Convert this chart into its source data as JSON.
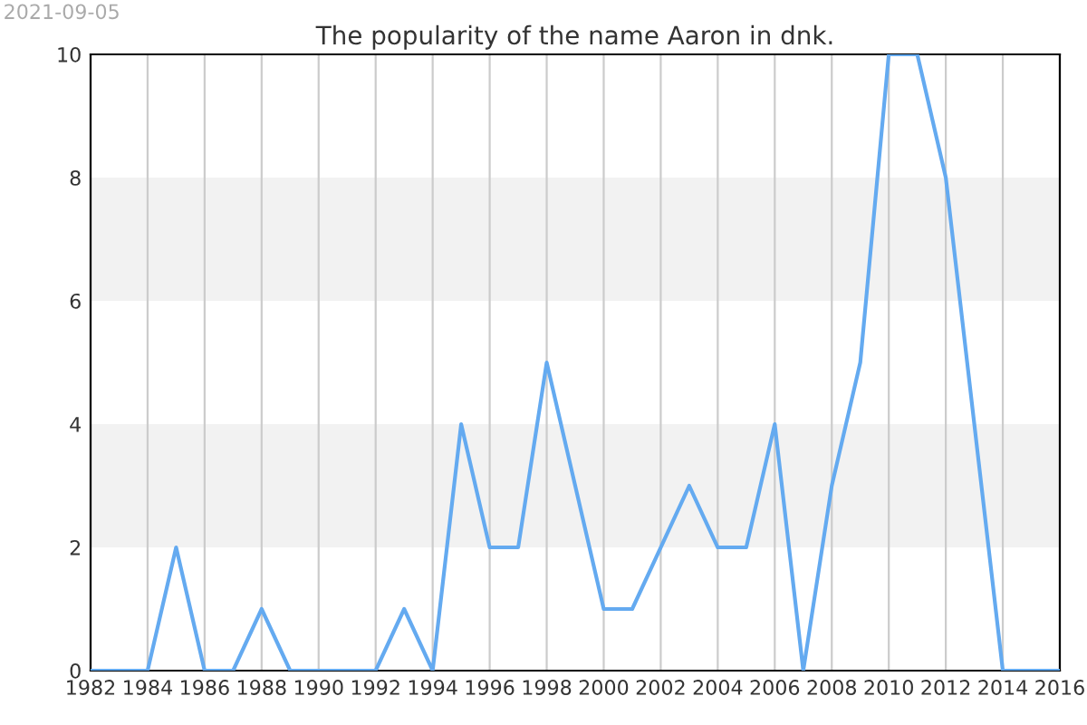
{
  "chart_data": {
    "type": "line",
    "title": "The popularity of the name Aaron in dnk.",
    "x": [
      1982,
      1983,
      1984,
      1985,
      1986,
      1987,
      1988,
      1989,
      1990,
      1991,
      1992,
      1993,
      1994,
      1995,
      1996,
      1997,
      1998,
      1999,
      2000,
      2001,
      2002,
      2003,
      2004,
      2005,
      2006,
      2007,
      2008,
      2009,
      2010,
      2011,
      2012,
      2013,
      2014,
      2015,
      2016
    ],
    "series": [
      {
        "color": "#64aaf0",
        "values": [
          0,
          0,
          0,
          2,
          0,
          0,
          1,
          0,
          0,
          0,
          0,
          1,
          0,
          4,
          2,
          2,
          5,
          3,
          1,
          1,
          2,
          3,
          2,
          2,
          4,
          0,
          3,
          5,
          10,
          10,
          8,
          4,
          0,
          0,
          0
        ]
      }
    ],
    "xlim": [
      1982,
      2016
    ],
    "xticks": [
      1982,
      1984,
      1986,
      1988,
      1990,
      1992,
      1994,
      1996,
      1998,
      2000,
      2002,
      2004,
      2006,
      2008,
      2010,
      2012,
      2014,
      2016
    ],
    "ylim": [
      0,
      10
    ],
    "yticks": [
      0,
      2,
      4,
      6,
      8,
      10
    ],
    "grid": "x",
    "marker": "none",
    "line_style": "solid",
    "bands": [
      {
        "axis": "y",
        "from": 2,
        "to": 4,
        "color": "#f2f2f2"
      },
      {
        "axis": "y",
        "from": 6,
        "to": 8,
        "color": "#f2f2f2"
      }
    ],
    "annotations": [
      "2021-09-05"
    ]
  }
}
